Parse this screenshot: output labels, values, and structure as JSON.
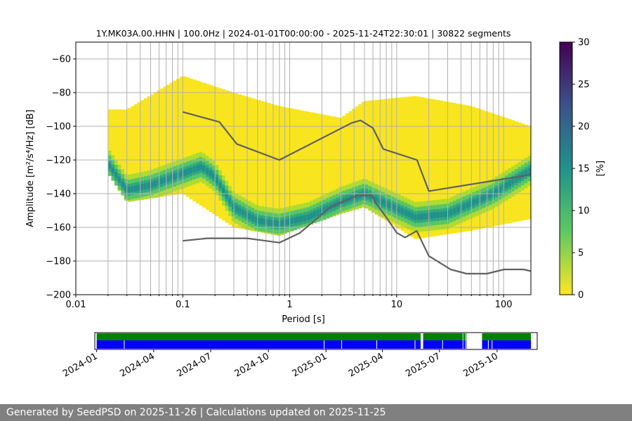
{
  "chart_data": [
    {
      "type": "heatmap",
      "title": "1Y.MK03A.00.HHN | 100.0Hz | 2024-01-01T00:00:00 - 2025-11-24T22:30:01 | 30822 segments",
      "xlabel": "Period [s]",
      "ylabel": "Amplitude [m²/s⁴/Hz] [dB]",
      "xscale": "log",
      "xlim": [
        0.01,
        180
      ],
      "ylim": [
        -200,
        -50
      ],
      "xticks": [
        0.01,
        0.1,
        1,
        10,
        100
      ],
      "xtick_labels": [
        "0.01",
        "0.1",
        "1",
        "10",
        "100"
      ],
      "yticks": [
        -60,
        -80,
        -100,
        -120,
        -140,
        -160,
        -180,
        -200
      ],
      "ytick_labels": [
        "−60",
        "−80",
        "−100",
        "−120",
        "−140",
        "−160",
        "−180",
        "−200"
      ],
      "grid": true,
      "probability_mode_db": [
        {
          "period": 0.02,
          "db": -122
        },
        {
          "period": 0.03,
          "db": -138
        },
        {
          "period": 0.05,
          "db": -135
        },
        {
          "period": 0.1,
          "db": -128
        },
        {
          "period": 0.15,
          "db": -124
        },
        {
          "period": 0.2,
          "db": -130
        },
        {
          "period": 0.3,
          "db": -148
        },
        {
          "period": 0.5,
          "db": -156
        },
        {
          "period": 0.8,
          "db": -158
        },
        {
          "period": 1.5,
          "db": -154
        },
        {
          "period": 3,
          "db": -145
        },
        {
          "period": 5,
          "db": -140
        },
        {
          "period": 8,
          "db": -146
        },
        {
          "period": 15,
          "db": -154
        },
        {
          "period": 30,
          "db": -152
        },
        {
          "period": 80,
          "db": -140
        },
        {
          "period": 180,
          "db": -126
        }
      ],
      "data_envelope_db": [
        {
          "period": 0.02,
          "lower": -128,
          "upper": -90
        },
        {
          "period": 0.03,
          "lower": -145,
          "upper": -90
        },
        {
          "period": 0.1,
          "lower": -140,
          "upper": -70
        },
        {
          "period": 0.3,
          "lower": -160,
          "upper": -80
        },
        {
          "period": 0.8,
          "lower": -165,
          "upper": -88
        },
        {
          "period": 3,
          "lower": -152,
          "upper": -95
        },
        {
          "period": 5,
          "lower": -148,
          "upper": -85
        },
        {
          "period": 15,
          "lower": -167,
          "upper": -82
        },
        {
          "period": 50,
          "lower": -162,
          "upper": -88
        },
        {
          "period": 180,
          "lower": -155,
          "upper": -100
        }
      ],
      "series": [
        {
          "x": [
            0.1,
            0.22,
            0.32,
            0.8,
            3.8,
            4.6,
            6,
            7.5,
            15.5,
            20,
            180
          ],
          "y": [
            -91.5,
            -97.4,
            -110.5,
            -120,
            -98,
            -96.5,
            -101,
            -113.5,
            -120,
            -138.5,
            -128.7
          ]
        },
        {
          "x": [
            0.1,
            0.17,
            0.4,
            0.8,
            1.24,
            2.4,
            4.3,
            5.9,
            6.3,
            8,
            10,
            12,
            15.4,
            20,
            32,
            45,
            70,
            101,
            154,
            180
          ],
          "y": [
            -168,
            -166.5,
            -166.5,
            -169.1,
            -163.4,
            -148,
            -141,
            -141,
            -145,
            -154,
            -163.2,
            -166,
            -162.1,
            -177,
            -185,
            -187.5,
            -187.5,
            -185,
            -185,
            -186
          ]
        }
      ],
      "colorbar": {
        "label": "[%]",
        "min": 0,
        "max": 30,
        "ticks": [
          0,
          5,
          10,
          15,
          20,
          25,
          30
        ],
        "tick_labels": [
          "0",
          "5",
          "10",
          "15",
          "20",
          "25",
          "30"
        ],
        "colormap": "viridis"
      }
    },
    {
      "type": "timeline",
      "x_tick_labels": [
        "2024-01",
        "2024-04",
        "2024-07",
        "2024-10",
        "2025-01",
        "2025-04",
        "2025-07",
        "2025-10"
      ],
      "xlim": [
        "2023-12-29",
        "2025-12-04"
      ],
      "available_intervals": [
        [
          "2024-01-01",
          "2025-06-01"
        ],
        [
          "2025-06-05",
          "2025-08-07"
        ],
        [
          "2025-08-08",
          "2025-08-11"
        ],
        [
          "2025-08-12",
          "2025-08-13"
        ],
        [
          "2025-09-07",
          "2025-11-24"
        ]
      ],
      "data_gaps": [
        "2024-02-14",
        "2024-12-29",
        "2025-01-26",
        "2025-03-23",
        "2025-05-23",
        "2025-07-06",
        "2025-09-17",
        "2025-09-23"
      ],
      "colors": {
        "top_band": "#008000",
        "bottom_band": "#0000ff"
      }
    }
  ],
  "footer": {
    "text": "Generated by SeedPSD on 2025-11-26 | Calculations updated on 2025-11-25"
  }
}
